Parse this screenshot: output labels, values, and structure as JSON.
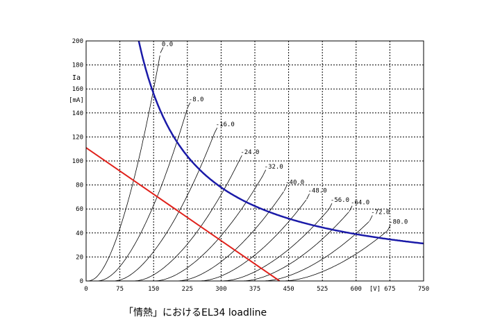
{
  "caption": "「情熱」におけるEL34 loadline",
  "chart_data": {
    "type": "line",
    "title": "",
    "ylabel": "Ia",
    "yunit": "[mA]",
    "xunit": "[V]",
    "xlim": [
      0,
      750
    ],
    "ylim": [
      0,
      200
    ],
    "x_ticks": [
      0,
      75,
      150,
      225,
      300,
      375,
      450,
      525,
      600,
      675,
      750
    ],
    "x_tick_labels": [
      "0",
      "75",
      "150",
      "225",
      "300",
      "375",
      "450",
      "525",
      "600",
      "675",
      "750"
    ],
    "y_ticks": [
      0,
      20,
      40,
      60,
      80,
      100,
      120,
      140,
      160,
      180,
      200
    ],
    "y_tick_labels": [
      "0",
      "20",
      "40",
      "60",
      "80",
      "100",
      "120",
      "140",
      "160",
      "180",
      "200"
    ],
    "grid": true,
    "colors": {
      "curves": "#000000",
      "loadline": "#e0201a",
      "dissipation": "#1a1aa8",
      "grid": "#000000"
    },
    "curve_family": [
      {
        "label": "0.0",
        "v0": 0,
        "x_at_label": 165,
        "y_at_label": 190
      },
      {
        "label": "-8.0",
        "v0": 20,
        "x_at_label": 225,
        "y_at_label": 144
      },
      {
        "label": "-16.0",
        "v0": 55,
        "x_at_label": 285,
        "y_at_label": 123
      },
      {
        "label": "-24.0",
        "v0": 100,
        "x_at_label": 340,
        "y_at_label": 100
      },
      {
        "label": "-32.0",
        "v0": 145,
        "x_at_label": 393,
        "y_at_label": 88
      },
      {
        "label": "-40.0",
        "v0": 195,
        "x_at_label": 440,
        "y_at_label": 75
      },
      {
        "label": "-48.0",
        "v0": 245,
        "x_at_label": 490,
        "y_at_label": 68
      },
      {
        "label": "-56.0",
        "v0": 295,
        "x_at_label": 540,
        "y_at_label": 60
      },
      {
        "label": "-64.0",
        "v0": 340,
        "x_at_label": 585,
        "y_at_label": 58
      },
      {
        "label": "-72.0",
        "v0": 385,
        "x_at_label": 630,
        "y_at_label": 50
      },
      {
        "label": "-80.0",
        "v0": 430,
        "x_at_label": 670,
        "y_at_label": 42
      }
    ],
    "loadline": {
      "x": [
        0,
        430
      ],
      "y": [
        111,
        0
      ]
    },
    "dissipation_curve": {
      "power_mA_V": 23400,
      "x_range": [
        117,
        750
      ]
    }
  }
}
